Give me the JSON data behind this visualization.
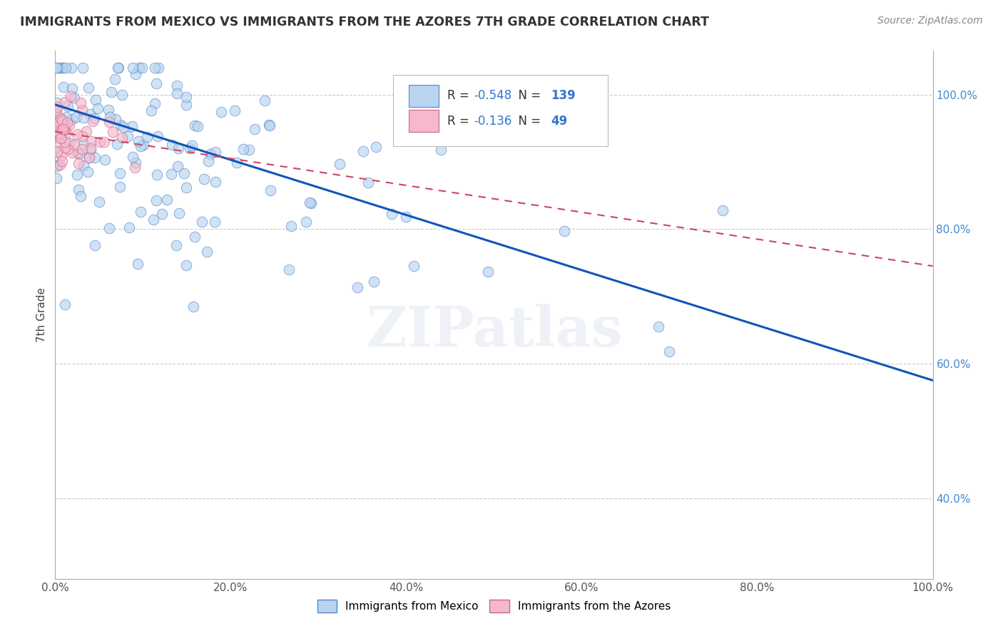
{
  "title": "IMMIGRANTS FROM MEXICO VS IMMIGRANTS FROM THE AZORES 7TH GRADE CORRELATION CHART",
  "source": "Source: ZipAtlas.com",
  "xlabel_mexico": "Immigrants from Mexico",
  "xlabel_azores": "Immigrants from the Azores",
  "ylabel": "7th Grade",
  "r_mexico": -0.548,
  "n_mexico": 139,
  "r_azores": -0.136,
  "n_azores": 49,
  "color_mexico_fill": "#b8d4ef",
  "color_mexico_edge": "#5588cc",
  "color_mexico_line": "#1155bb",
  "color_azores_fill": "#f5b8cc",
  "color_azores_edge": "#cc6688",
  "color_azores_line": "#cc4466",
  "watermark": "ZIPatlas",
  "xlim": [
    0.0,
    1.0
  ],
  "ylim": [
    0.28,
    1.065
  ],
  "xticks": [
    0.0,
    0.2,
    0.4,
    0.6,
    0.8,
    1.0
  ],
  "yticks": [
    0.4,
    0.6,
    0.8,
    1.0
  ],
  "xticklabels": [
    "0.0%",
    "20.0%",
    "40.0%",
    "60.0%",
    "80.0%",
    "100.0%"
  ],
  "yticklabels": [
    "40.0%",
    "60.0%",
    "80.0%",
    "100.0%"
  ],
  "grid_color": "#cccccc",
  "background_color": "#ffffff",
  "mex_line_x0": 0.0,
  "mex_line_x1": 1.0,
  "mex_line_y0": 0.985,
  "mex_line_y1": 0.575,
  "az_line_x0": 0.0,
  "az_line_x1": 1.0,
  "az_line_y0": 0.945,
  "az_line_y1": 0.745
}
